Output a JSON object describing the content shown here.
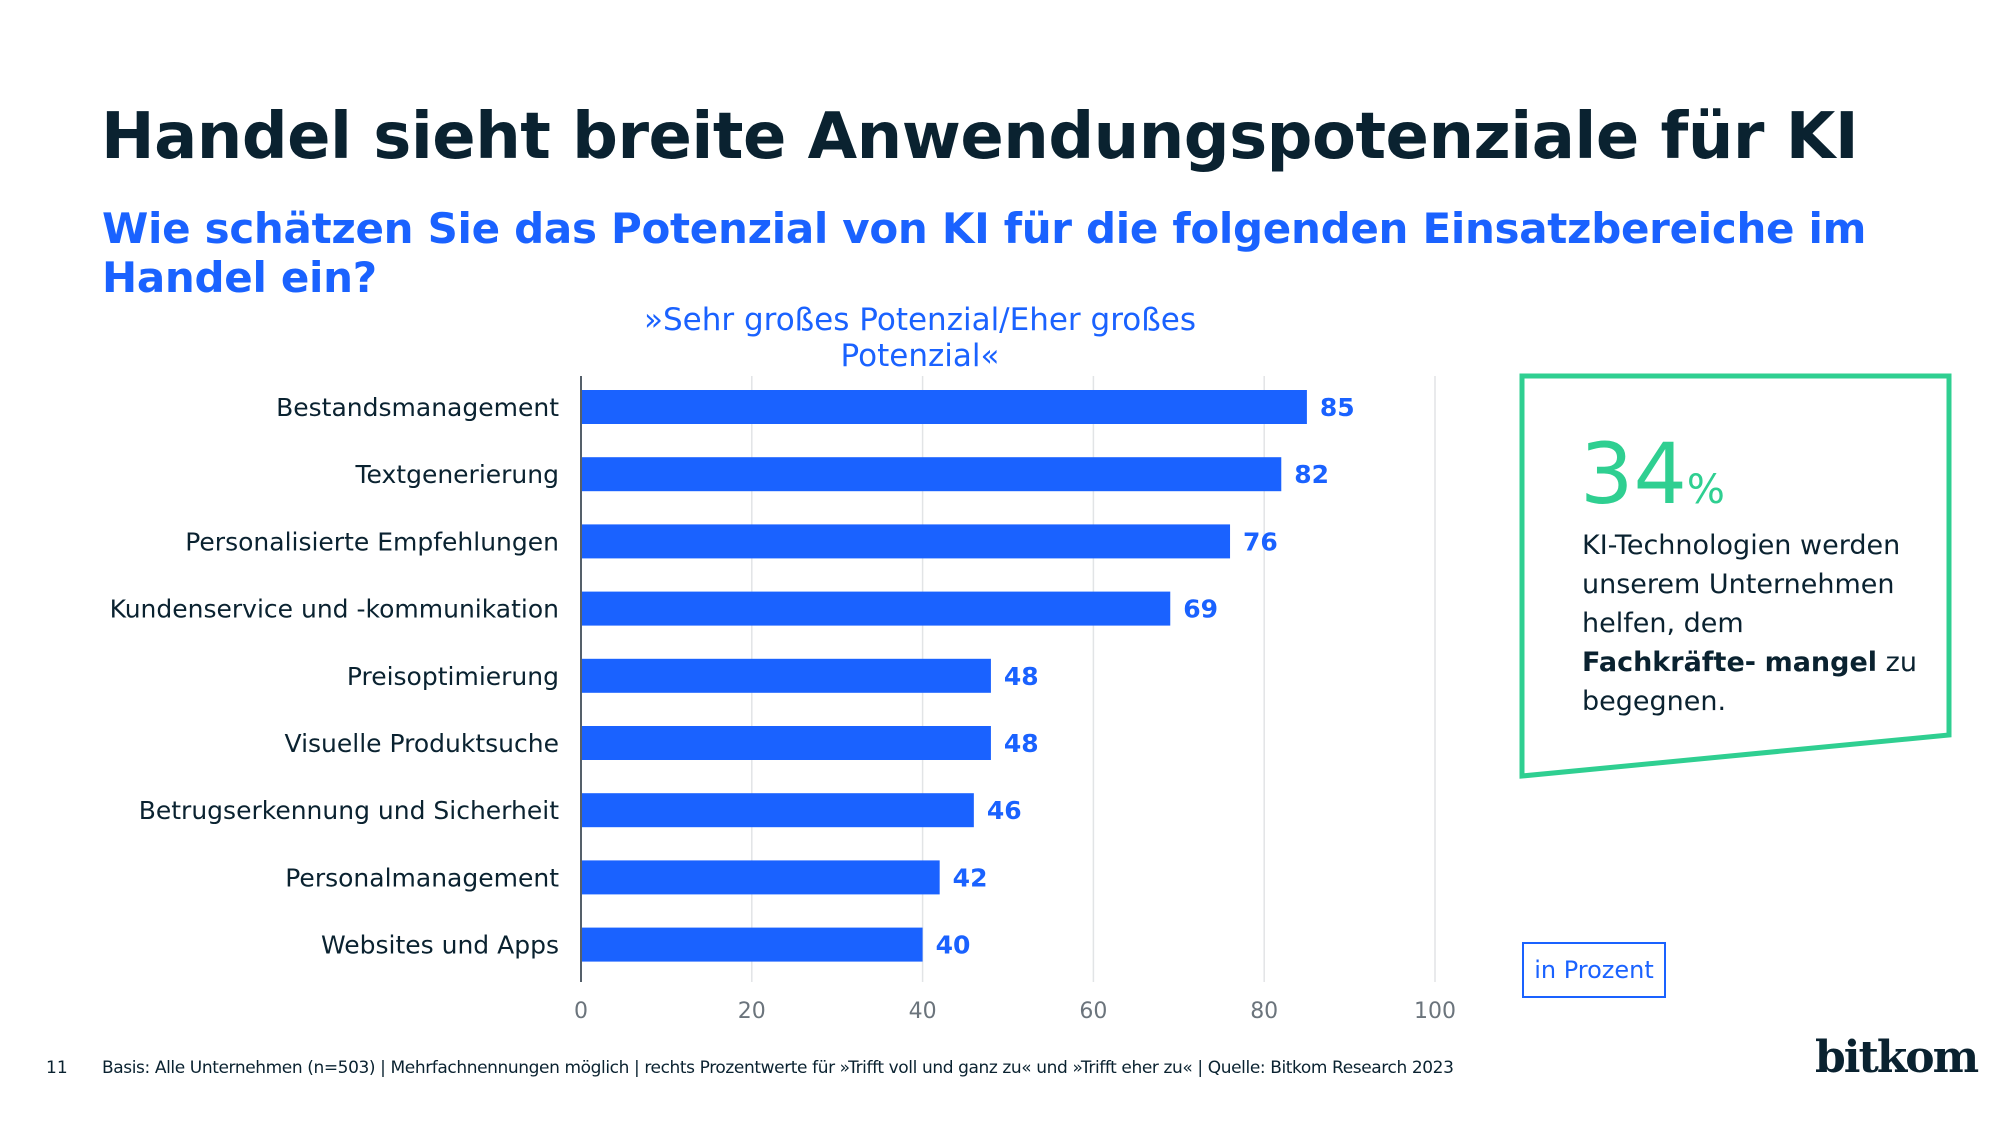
{
  "header": {
    "title": "Handel sieht breite Anwendungspotenziale für KI",
    "subtitle": "Wie schätzen Sie das Potenzial von KI für die folgenden Einsatzbereiche im Handel ein?"
  },
  "chart_data": {
    "type": "bar",
    "orientation": "horizontal",
    "title": "»Sehr großes Potenzial/Eher großes Potenzial«",
    "categories": [
      "Bestandsmanagement",
      "Textgenerierung",
      "Personalisierte Empfehlungen",
      "Kundenservice und -kommunikation",
      "Preisoptimierung",
      "Visuelle Produktsuche",
      "Betrugserkennung und Sicherheit",
      "Personalmanagement",
      "Websites und Apps"
    ],
    "values": [
      85,
      82,
      76,
      69,
      48,
      48,
      46,
      42,
      40
    ],
    "xlim": [
      0,
      100
    ],
    "xticks": [
      "0",
      "20",
      "40",
      "60",
      "80",
      "100"
    ],
    "grid": true,
    "unit": "in Prozent",
    "bar_color": "#1a62ff"
  },
  "callout": {
    "number": "34",
    "percent": "%",
    "text_pre": "KI-Technologien werden unserem Unternehmen helfen, dem ",
    "text_bold1": "Fachkräfte-",
    "text_bold2": "mangel",
    "text_post": " zu begegnen.",
    "color": "#2fcf91"
  },
  "footer": {
    "page": "11",
    "note": "Basis: Alle Unternehmen (n=503) | Mehrfachnennungen möglich | rechts Prozentwerte für »Trifft voll und ganz zu« und »Trifft eher zu« | Quelle: Bitkom Research 2023",
    "logo": "bitkom"
  }
}
